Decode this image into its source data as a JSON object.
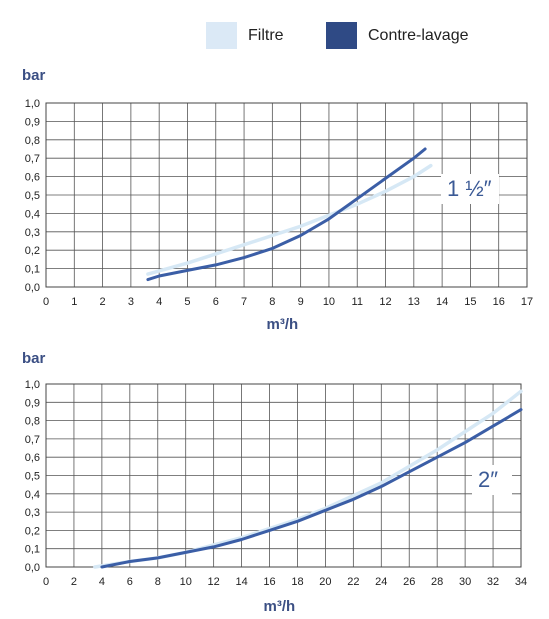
{
  "legend": {
    "items": [
      {
        "label": "Filtre",
        "color": "#dbe9f6"
      },
      {
        "label": "Contre-lavage",
        "color": "#2f4a85"
      }
    ]
  },
  "chart_data": [
    {
      "type": "line",
      "ylabel": "bar",
      "xlabel": "m³/h",
      "annotation": "1 ½″",
      "xlim": [
        0,
        17
      ],
      "ylim": [
        0,
        1.0
      ],
      "x_ticks": [
        "0",
        "1",
        "2",
        "3",
        "4",
        "5",
        "6",
        "7",
        "8",
        "9",
        "10",
        "11",
        "12",
        "13",
        "14",
        "15",
        "16",
        "17"
      ],
      "y_ticks": [
        "0,0",
        "0,1",
        "0,2",
        "0,3",
        "0,4",
        "0,5",
        "0,6",
        "0,7",
        "0,8",
        "0,9",
        "1,0"
      ],
      "grid": true,
      "series": [
        {
          "name": "Filtre",
          "color": "#d6e8f5",
          "x": [
            3.6,
            5,
            6,
            7,
            8,
            9,
            10,
            11,
            12,
            13,
            13.6
          ],
          "y": [
            0.07,
            0.13,
            0.18,
            0.23,
            0.28,
            0.33,
            0.39,
            0.45,
            0.52,
            0.6,
            0.66
          ]
        },
        {
          "name": "Contre-lavage",
          "color": "#3b5ea6",
          "x": [
            3.6,
            4,
            5,
            6,
            7,
            8,
            9,
            10,
            11,
            12,
            13,
            13.4
          ],
          "y": [
            0.04,
            0.06,
            0.09,
            0.12,
            0.16,
            0.21,
            0.28,
            0.37,
            0.48,
            0.59,
            0.7,
            0.75
          ]
        }
      ]
    },
    {
      "type": "line",
      "ylabel": "bar",
      "xlabel": "m³/h",
      "annotation": "2″",
      "xlim": [
        0,
        34
      ],
      "ylim": [
        0,
        1.0
      ],
      "x_ticks": [
        "0",
        "2",
        "4",
        "6",
        "8",
        "10",
        "12",
        "14",
        "16",
        "18",
        "20",
        "22",
        "24",
        "26",
        "28",
        "30",
        "32",
        "34"
      ],
      "y_ticks": [
        "0,0",
        "0,1",
        "0,2",
        "0,3",
        "0,4",
        "0,5",
        "0,6",
        "0,7",
        "0,8",
        "0,9",
        "1,0"
      ],
      "grid": true,
      "series": [
        {
          "name": "Filtre",
          "color": "#d6e8f5",
          "x": [
            3.5,
            6,
            8,
            10,
            12,
            14,
            16,
            18,
            20,
            22,
            24,
            26,
            28,
            30,
            32,
            34
          ],
          "y": [
            0.0,
            0.03,
            0.05,
            0.08,
            0.12,
            0.16,
            0.21,
            0.26,
            0.32,
            0.39,
            0.46,
            0.55,
            0.64,
            0.74,
            0.84,
            0.96
          ]
        },
        {
          "name": "Contre-lavage",
          "color": "#3b5ea6",
          "x": [
            4,
            6,
            8,
            10,
            12,
            14,
            16,
            18,
            20,
            22,
            24,
            26,
            28,
            30,
            32,
            34
          ],
          "y": [
            0.0,
            0.03,
            0.05,
            0.08,
            0.11,
            0.15,
            0.2,
            0.25,
            0.31,
            0.37,
            0.44,
            0.52,
            0.6,
            0.68,
            0.77,
            0.86
          ]
        }
      ]
    }
  ]
}
